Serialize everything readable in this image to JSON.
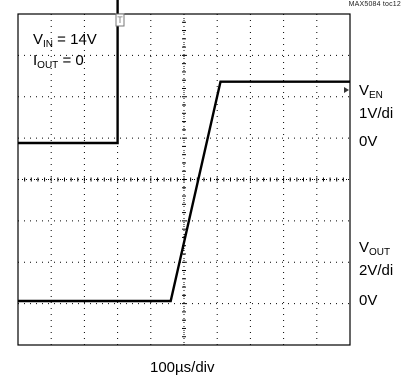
{
  "figure_ref": "MAX5084 toc12",
  "annotations": {
    "vin_symbol": "V",
    "vin_subscript": "IN",
    "vin_value": " = 14V",
    "iout_symbol": "I",
    "iout_subscript": "OUT",
    "iout_value": " = 0"
  },
  "channels": {
    "ch1": {
      "symbol": "V",
      "subscript": "EN",
      "scale": "1V/di",
      "zero": "0V"
    },
    "ch2": {
      "symbol": "V",
      "subscript": "OUT",
      "scale": "2V/di",
      "zero": "0V"
    }
  },
  "time_scale": "100µs/div",
  "colors": {
    "trace": "#000000",
    "grid": "#000000",
    "background": "#ffffff"
  },
  "chart_data": {
    "type": "line",
    "x_unit": "div",
    "xlim": [
      0,
      10
    ],
    "grid": "10x8 divisions, dotted",
    "series": [
      {
        "name": "V_EN",
        "scale": "1V/div",
        "x": [
          0,
          3.0,
          3.0,
          10
        ],
        "y": [
          0,
          0,
          3.5,
          3.5
        ]
      },
      {
        "name": "V_OUT",
        "scale": "2V/div",
        "x": [
          0,
          4.6,
          6.1,
          10
        ],
        "y": [
          0,
          0,
          5.3,
          5.3
        ]
      }
    ],
    "xlabel": "100µs/div"
  }
}
